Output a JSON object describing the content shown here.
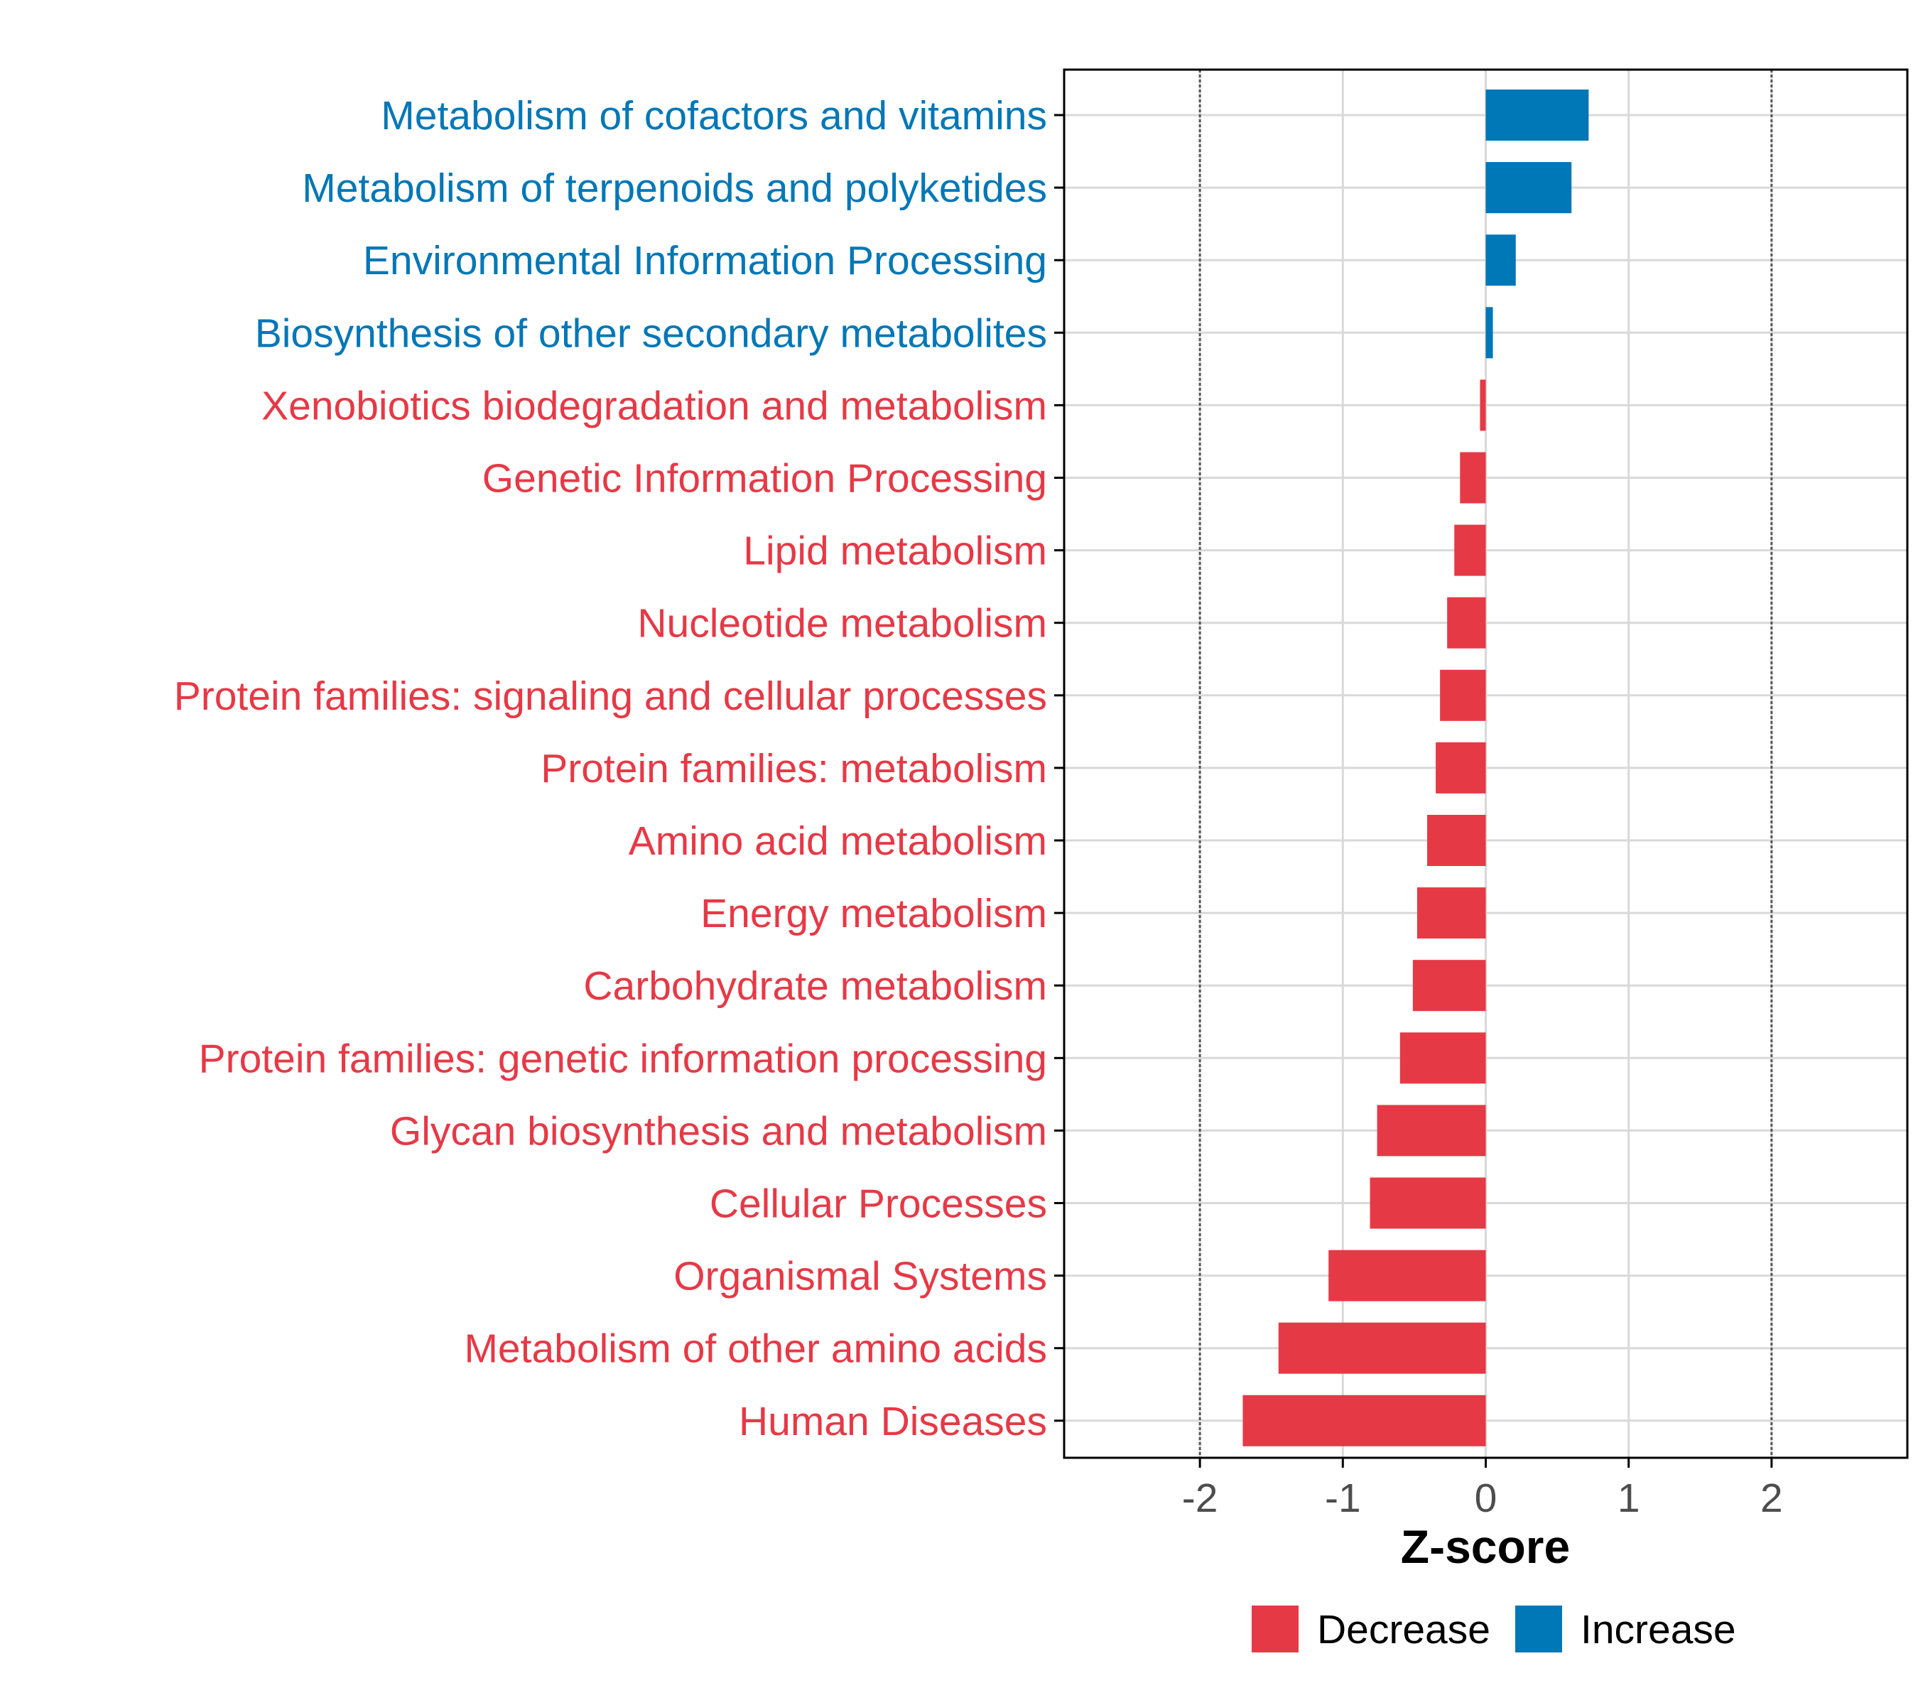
{
  "colors": {
    "decrease": "#e63946",
    "increase": "#0077b6",
    "grid": "#d9d9d9",
    "axis": "#000000",
    "tick_text": "#4d4d4d",
    "threshold": "#555555"
  },
  "chart_data": {
    "type": "bar",
    "orientation": "horizontal",
    "title": "",
    "xlabel": "Z-score",
    "ylabel": "",
    "xlim": [
      -2.95,
      2.95
    ],
    "xticks": [
      -2,
      -1,
      0,
      1,
      2
    ],
    "xtick_labels": [
      "-2",
      "-1",
      "0",
      "1",
      "2"
    ],
    "threshold_lines": [
      -2,
      2
    ],
    "grid": true,
    "legend": {
      "placement": "bottom",
      "entries": [
        {
          "label": "Decrease",
          "color_key": "decrease"
        },
        {
          "label": "Increase",
          "color_key": "increase"
        }
      ]
    },
    "categories": [
      "Metabolism of cofactors and vitamins",
      "Metabolism of terpenoids and polyketides",
      "Environmental Information Processing",
      "Biosynthesis of other secondary metabolites",
      "Xenobiotics biodegradation and metabolism",
      "Genetic Information Processing",
      "Lipid metabolism",
      "Nucleotide metabolism",
      "Protein families: signaling and cellular processes",
      "Protein families: metabolism",
      "Amino acid metabolism",
      "Energy metabolism",
      "Carbohydrate metabolism",
      "Protein families: genetic information processing",
      "Glycan biosynthesis and metabolism",
      "Cellular Processes",
      "Organismal Systems",
      "Metabolism of other amino acids",
      "Human Diseases"
    ],
    "values": [
      0.72,
      0.6,
      0.21,
      0.05,
      -0.04,
      -0.18,
      -0.22,
      -0.27,
      -0.32,
      -0.35,
      -0.41,
      -0.48,
      -0.51,
      -0.6,
      -0.76,
      -0.81,
      -1.1,
      -1.45,
      -1.7
    ],
    "groups": [
      "Increase",
      "Increase",
      "Increase",
      "Increase",
      "Decrease",
      "Decrease",
      "Decrease",
      "Decrease",
      "Decrease",
      "Decrease",
      "Decrease",
      "Decrease",
      "Decrease",
      "Decrease",
      "Decrease",
      "Decrease",
      "Decrease",
      "Decrease",
      "Decrease"
    ]
  }
}
